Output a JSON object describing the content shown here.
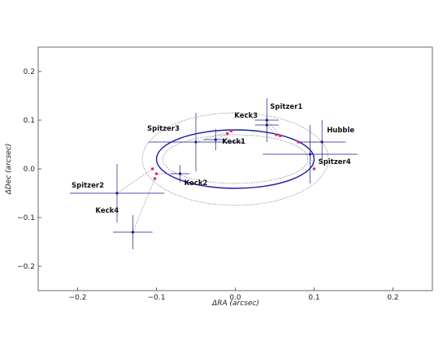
{
  "chart_data": {
    "type": "scatter",
    "title": "",
    "xlabel": "ΔRA (arcsec)",
    "ylabel": "ΔDec (arcsec)",
    "xlim": [
      -0.25,
      0.25
    ],
    "ylim": [
      -0.25,
      0.25
    ],
    "x_ticks": [
      -0.2,
      -0.1,
      0.0,
      0.1,
      0.2
    ],
    "x_tick_labels": [
      "−0.2",
      "−0.1",
      "0.0",
      "0.1",
      "0.2"
    ],
    "y_ticks": [
      -0.2,
      -0.1,
      0.0,
      0.1,
      0.2
    ],
    "y_tick_labels": [
      "−0.2",
      "−0.1",
      "0.0",
      "0.1",
      "0.2"
    ],
    "grid": false,
    "colors": {
      "orbit": "#1a1aa8",
      "data": "#1a1a8f",
      "model": "#d0306a",
      "connector": "#8a8ab0",
      "bounds": "#777777"
    },
    "orbit": {
      "center": [
        0.0,
        0.02
      ],
      "semi_major": 0.1,
      "semi_minor": 0.06
    },
    "orbit_bounds": [
      {
        "center": [
          0.0,
          0.02
        ],
        "semi_major": 0.118,
        "semi_minor": 0.095
      },
      {
        "center": [
          0.0,
          0.02
        ],
        "semi_major": 0.092,
        "semi_minor": 0.05
      }
    ],
    "points": [
      {
        "label": "Keck3",
        "x": 0.04,
        "y": 0.09,
        "xerr": 0.015,
        "yerr": 0.018,
        "model": [
          0.052,
          0.07
        ]
      },
      {
        "label": "Spitzer1",
        "x": 0.04,
        "y": 0.1,
        "xerr": 0.015,
        "yerr": 0.045,
        "model": [
          0.057,
          0.068
        ]
      },
      {
        "label": "Hubble",
        "x": 0.11,
        "y": 0.055,
        "xerr": 0.03,
        "yerr": 0.045,
        "model": [
          0.08,
          0.055
        ]
      },
      {
        "label": "Spitzer4",
        "x": 0.095,
        "y": 0.03,
        "xerr": 0.06,
        "yerr": 0.06,
        "model": [
          0.1,
          0.0
        ]
      },
      {
        "label": "Spitzer3",
        "x": -0.05,
        "y": 0.055,
        "xerr": 0.06,
        "yerr": 0.06,
        "model": [
          -0.005,
          0.078
        ]
      },
      {
        "label": "Keck1",
        "x": -0.025,
        "y": 0.06,
        "xerr": 0.015,
        "yerr": 0.022,
        "model": [
          -0.01,
          0.072
        ]
      },
      {
        "label": "Keck2",
        "x": -0.07,
        "y": -0.01,
        "xerr": 0.012,
        "yerr": 0.018,
        "model": [
          -0.1,
          -0.01
        ]
      },
      {
        "label": "Spitzer2",
        "x": -0.15,
        "y": -0.05,
        "xerr": 0.06,
        "yerr": 0.06,
        "model": [
          -0.105,
          0.0
        ]
      },
      {
        "label": "Keck4",
        "x": -0.13,
        "y": -0.13,
        "xerr": 0.025,
        "yerr": 0.035,
        "model": [
          -0.102,
          -0.02
        ]
      }
    ]
  }
}
